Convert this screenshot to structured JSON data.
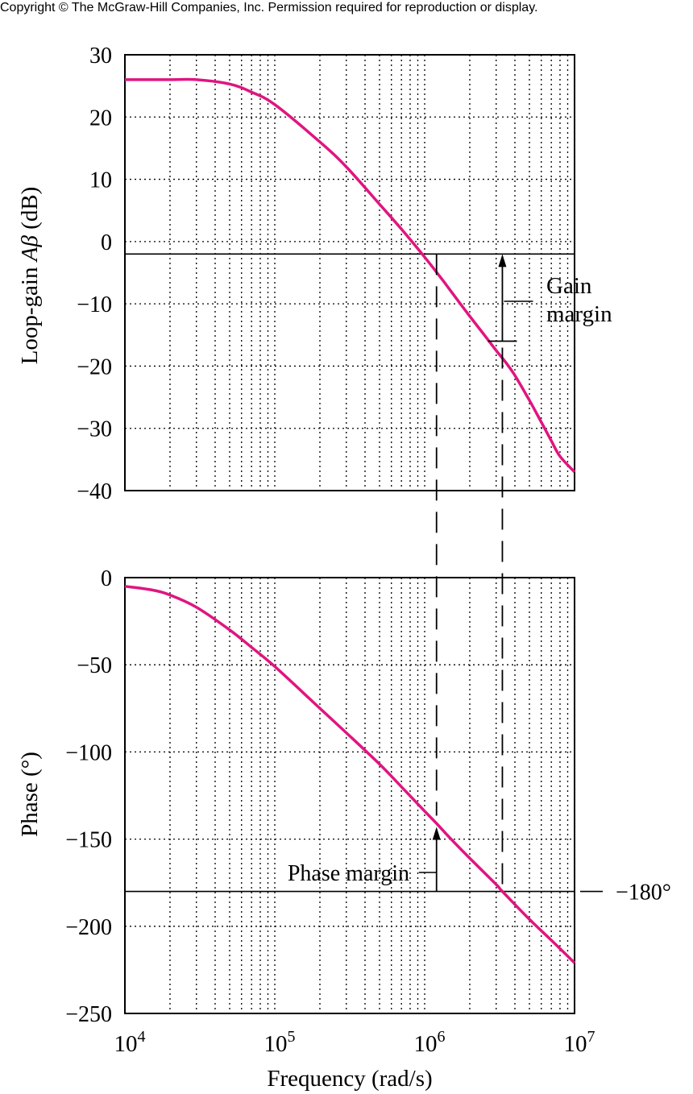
{
  "copyright": "Copyright © The McGraw-Hill Companies, Inc. Permission required for reproduction or display.",
  "chart_data": [
    {
      "type": "line",
      "ylabel_prefix": "Loop-gain ",
      "ylabel_symbol": "Aβ",
      "ylabel_suffix": " (dB)",
      "xscale": "log",
      "xlim": [
        10000,
        10000000
      ],
      "ylim": [
        -40,
        30
      ],
      "yticks": [
        30,
        20,
        10,
        0,
        -10,
        -20,
        -30,
        -40
      ],
      "yticklabels": [
        "30",
        "20",
        "10",
        "0",
        "−10",
        "−20",
        "−30",
        "−40"
      ],
      "reference_line_y": -2,
      "grid": true,
      "series": [
        {
          "color": "#e0157f",
          "x": [
            10000,
            20000,
            30000,
            50000,
            70000,
            100000,
            200000,
            300000,
            500000,
            700000,
            1000000,
            1300000,
            1500000,
            2000000,
            2500000,
            3000000,
            3500000,
            4000000,
            5000000,
            6000000,
            7000000,
            8000000,
            10000000
          ],
          "y": [
            26,
            26,
            26,
            25.3,
            24,
            22,
            16,
            12,
            6,
            2,
            -2.5,
            -6,
            -8,
            -12,
            -15,
            -17.5,
            -19.5,
            -21.5,
            -25.5,
            -29,
            -32,
            -34.5,
            -37
          ]
        }
      ],
      "annotations": [
        {
          "text": "Gain",
          "key": "gain_line1"
        },
        {
          "text": "margin",
          "key": "gain_line2"
        }
      ]
    },
    {
      "type": "line",
      "xlabel": "Frequency (rad/s)",
      "ylabel": "Phase (°)",
      "xscale": "log",
      "xlim": [
        10000,
        10000000
      ],
      "ylim": [
        -250,
        0
      ],
      "yticks": [
        0,
        -50,
        -100,
        -150,
        -200,
        -250
      ],
      "yticklabels": [
        "0",
        "−50",
        "−100",
        "−150",
        "−200",
        "−250"
      ],
      "xticklabels": [
        {
          "base": "10",
          "exp": "4",
          "value": 10000
        },
        {
          "base": "10",
          "exp": "5",
          "value": 100000
        },
        {
          "base": "10",
          "exp": "6",
          "value": 1000000
        },
        {
          "base": "10",
          "exp": "7",
          "value": 10000000
        }
      ],
      "reference_line_y": -180,
      "reference_label": "−180°",
      "grid": true,
      "series": [
        {
          "color": "#e0157f",
          "x": [
            10000,
            15000,
            20000,
            30000,
            50000,
            70000,
            100000,
            200000,
            300000,
            500000,
            700000,
            1000000,
            1200000,
            1500000,
            2000000,
            3000000,
            3300000,
            5000000,
            7000000,
            10000000
          ],
          "y": [
            -5,
            -7,
            -10,
            -17,
            -30,
            -40,
            -51,
            -75,
            -89,
            -107,
            -120,
            -134,
            -141,
            -150,
            -161,
            -176,
            -180,
            -196,
            -208,
            -221
          ]
        }
      ],
      "annotations": [
        {
          "text": "Phase margin",
          "key": "phase_margin"
        }
      ]
    }
  ],
  "markers": {
    "gain_crossover_x": 1200000,
    "phase_crossover_x": 3300000,
    "gain_margin_top_db": -2,
    "gain_margin_bottom_db": -16,
    "phase_margin_top_deg": -143,
    "phase_margin_bottom_deg": -180
  }
}
